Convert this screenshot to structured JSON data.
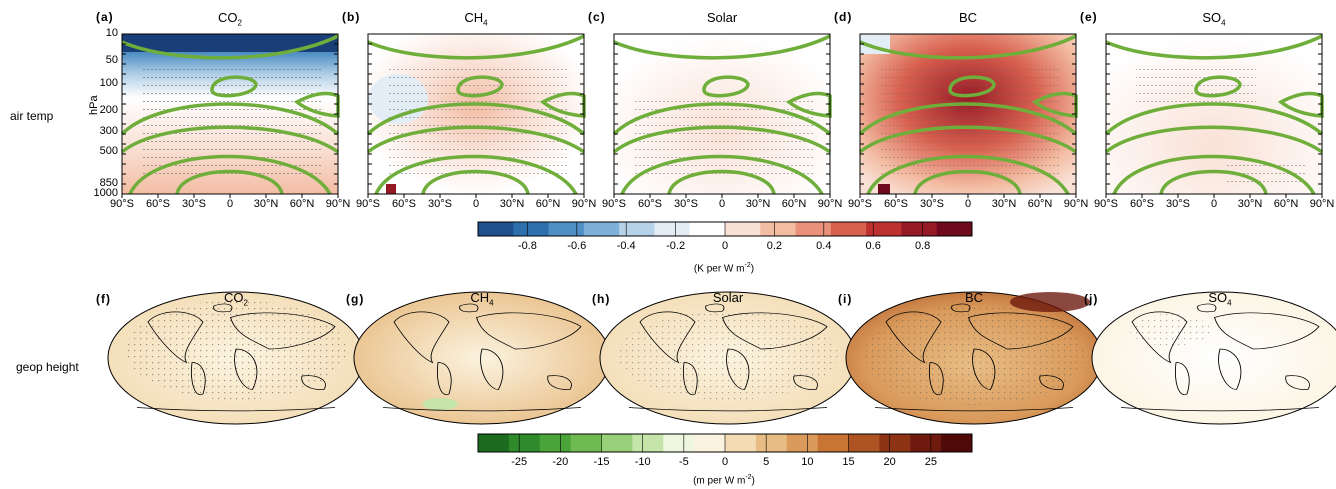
{
  "row_labels": {
    "top": "air temp",
    "bottom": "geop height"
  },
  "y_axis": {
    "label": "hPa",
    "ticks": [
      "10",
      "50",
      "100",
      "200",
      "300",
      "500",
      "850",
      "1000"
    ]
  },
  "x_axis": {
    "ticks": [
      "90°S",
      "60°S",
      "30°S",
      "0",
      "30°N",
      "60°N",
      "90°N"
    ]
  },
  "top_panels": [
    {
      "letter": "(a)",
      "title_main": "CO",
      "title_sub": "2"
    },
    {
      "letter": "(b)",
      "title_main": "CH",
      "title_sub": "4"
    },
    {
      "letter": "(c)",
      "title_main": "Solar",
      "title_sub": ""
    },
    {
      "letter": "(d)",
      "title_main": "BC",
      "title_sub": ""
    },
    {
      "letter": "(e)",
      "title_main": "SO",
      "title_sub": "4"
    }
  ],
  "bottom_panels": [
    {
      "letter": "(f)",
      "title_main": "CO",
      "title_sub": "2"
    },
    {
      "letter": "(g)",
      "title_main": "CH",
      "title_sub": "4"
    },
    {
      "letter": "(h)",
      "title_main": "Solar",
      "title_sub": ""
    },
    {
      "letter": "(i)",
      "title_main": "BC",
      "title_sub": ""
    },
    {
      "letter": "(j)",
      "title_main": "SO",
      "title_sub": "4"
    }
  ],
  "colorbar_temp": {
    "ticks": [
      "-0.8",
      "-0.6",
      "-0.4",
      "-0.2",
      "0",
      "0.2",
      "0.4",
      "0.6",
      "0.8"
    ],
    "unit_main": "(K per W m",
    "unit_sup": "-2",
    "unit_end": ")",
    "colors": [
      "#1f4f8c",
      "#2e6fae",
      "#4f8fc4",
      "#7fb0d8",
      "#b6d2e8",
      "#e3edf5",
      "#ffffff",
      "#f9e1d6",
      "#f3bda4",
      "#e9917a",
      "#d8604f",
      "#bd3230",
      "#961a26",
      "#6f0a1e"
    ]
  },
  "colorbar_geop": {
    "ticks": [
      "-25",
      "-20",
      "-15",
      "-10",
      "-5",
      "0",
      "5",
      "10",
      "15",
      "20",
      "25"
    ],
    "unit_main": "(m per W m",
    "unit_sup": "-2",
    "unit_end": ")",
    "colors": [
      "#1d6b1f",
      "#2e8a2a",
      "#4aa43a",
      "#6fbb52",
      "#98d07a",
      "#c5e4aa",
      "#eef6df",
      "#fbf3df",
      "#f3dbb3",
      "#e8bd85",
      "#d99a5b",
      "#c87534",
      "#ad5422",
      "#8f3315",
      "#6e1a0e",
      "#4f0a08"
    ]
  },
  "chart_data": [
    {
      "type": "heatmap",
      "title": "CO2",
      "xlabel": "",
      "ylabel": "hPa",
      "x_ticks": [
        "90°S",
        "60°S",
        "30°S",
        "0",
        "30°N",
        "60°N",
        "90°N"
      ],
      "y_ticks": [
        10,
        50,
        100,
        200,
        300,
        500,
        850,
        1000
      ],
      "colorbar_range": [
        -0.9,
        0.9
      ],
      "colorbar_unit": "K per W m-2"
    },
    {
      "type": "heatmap",
      "title": "CH4",
      "ylabel": "",
      "colorbar_range": [
        -0.9,
        0.9
      ]
    },
    {
      "type": "heatmap",
      "title": "Solar",
      "ylabel": "",
      "colorbar_range": [
        -0.9,
        0.9
      ]
    },
    {
      "type": "heatmap",
      "title": "BC",
      "ylabel": "",
      "colorbar_range": [
        -0.9,
        0.9
      ]
    },
    {
      "type": "heatmap",
      "title": "SO4",
      "ylabel": "",
      "colorbar_range": [
        -0.9,
        0.9
      ]
    },
    {
      "type": "heatmap",
      "title": "CO2",
      "colorbar_range": [
        -30,
        30
      ],
      "colorbar_unit": "m per W m-2"
    },
    {
      "type": "heatmap",
      "title": "CH4",
      "colorbar_range": [
        -30,
        30
      ]
    },
    {
      "type": "heatmap",
      "title": "Solar",
      "colorbar_range": [
        -30,
        30
      ]
    },
    {
      "type": "heatmap",
      "title": "BC",
      "colorbar_range": [
        -30,
        30
      ]
    },
    {
      "type": "heatmap",
      "title": "SO4",
      "colorbar_range": [
        -30,
        30
      ]
    }
  ]
}
